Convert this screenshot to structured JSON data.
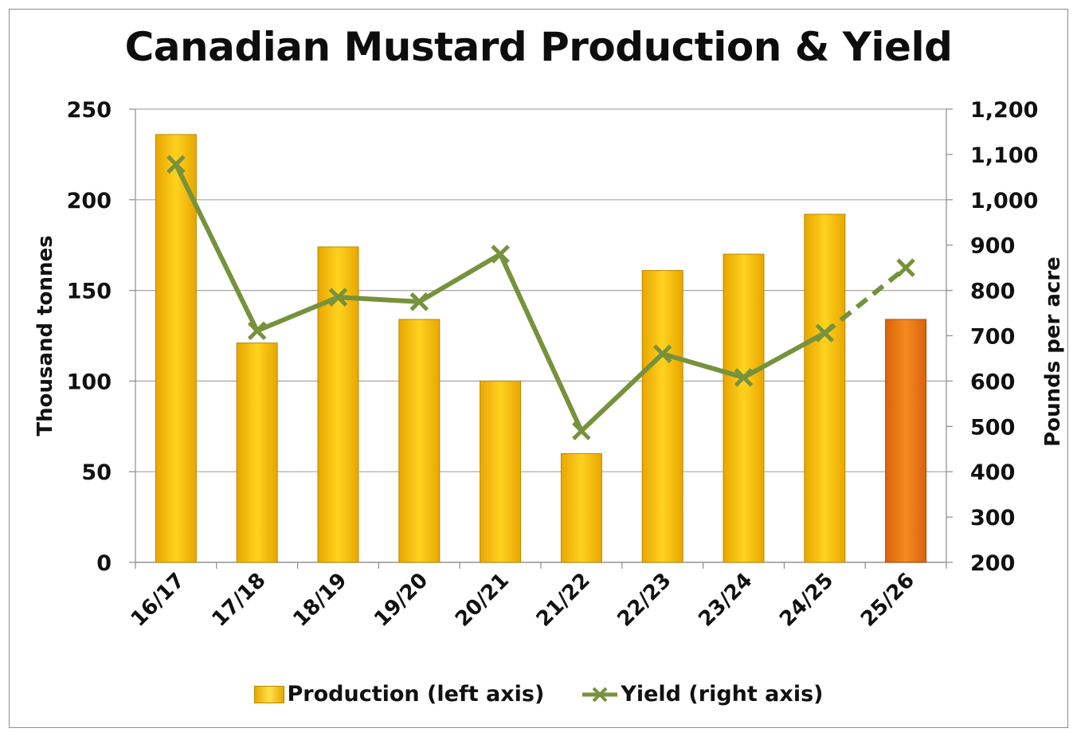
{
  "chart_data": {
    "type": "bar",
    "title": "Canadian Mustard Production & Yield",
    "categories": [
      "16/17",
      "17/18",
      "18/19",
      "19/20",
      "20/21",
      "21/22",
      "22/23",
      "23/24",
      "24/25",
      "25/26"
    ],
    "series": [
      {
        "name": "Production (left axis)",
        "type": "bar",
        "axis": "left",
        "values": [
          236,
          121,
          174,
          134,
          100,
          60,
          161,
          170,
          192,
          134
        ],
        "colors": [
          "#ffc000",
          "#ffc000",
          "#ffc000",
          "#ffc000",
          "#ffc000",
          "#ffc000",
          "#ffc000",
          "#ffc000",
          "#ffc000",
          "#f07a12"
        ]
      },
      {
        "name": "Yield (right axis)",
        "type": "line",
        "axis": "right",
        "values": [
          1078,
          711,
          785,
          775,
          880,
          490,
          660,
          608,
          706,
          850
        ],
        "color": "#76923c",
        "dashed_last_segment": true
      }
    ],
    "ylabel": "Thousand tonnes",
    "y2label": "Pounds per acre",
    "ylim": [
      0,
      250
    ],
    "y2lim": [
      200,
      1200
    ],
    "yticks": [
      "0",
      "50",
      "100",
      "150",
      "200",
      "250"
    ],
    "y2ticks": [
      "200",
      "300",
      "400",
      "500",
      "600",
      "700",
      "800",
      "900",
      "1,000",
      "1,100",
      "1,200"
    ],
    "grid": true,
    "legend": "bottom"
  },
  "legend": {
    "production_label": "Production (left axis)",
    "yield_label": "Yield (right axis)"
  }
}
